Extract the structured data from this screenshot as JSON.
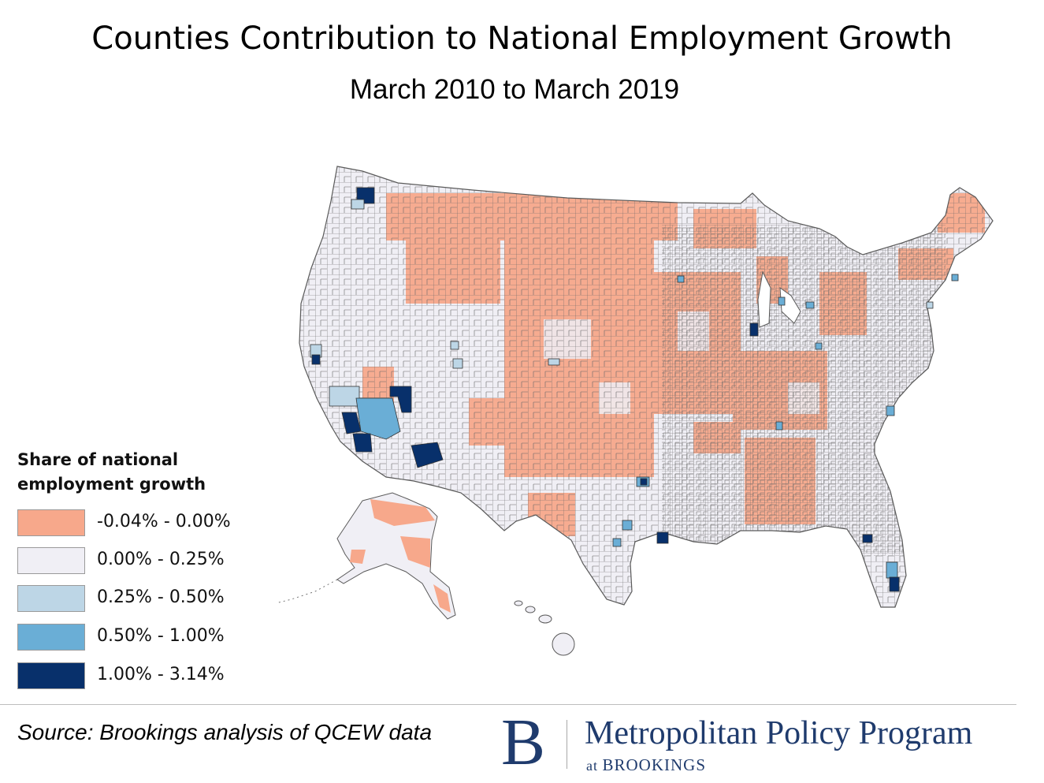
{
  "title": "Counties Contribution to National Employment Growth",
  "subtitle": "March 2010 to March 2019",
  "legend": {
    "title": "Share of national employment growth",
    "items": [
      {
        "label": "-0.04% - 0.00%",
        "color": "#f7a88b"
      },
      {
        "label": "0.00% - 0.25%",
        "color": "#f0eff5"
      },
      {
        "label": "0.25% - 0.50%",
        "color": "#bdd6e6"
      },
      {
        "label": "0.50% - 1.00%",
        "color": "#6aaed6"
      },
      {
        "label": "1.00% - 3.14%",
        "color": "#08306b"
      }
    ]
  },
  "map": {
    "regions": [
      "Contiguous United States",
      "Alaska",
      "Hawaii"
    ],
    "colors": {
      "negative": "#f7a88b",
      "low": "#f0eff5",
      "mid": "#bdd6e6",
      "high": "#6aaed6",
      "top": "#08306b",
      "border": "#5a5a5a"
    }
  },
  "source": "Source: Brookings analysis of QCEW data",
  "logo": {
    "mark": "B",
    "name": "Metropolitan Policy Program",
    "sub_prefix": "at",
    "sub_name": "BROOKINGS",
    "color": "#1f3b6d"
  }
}
